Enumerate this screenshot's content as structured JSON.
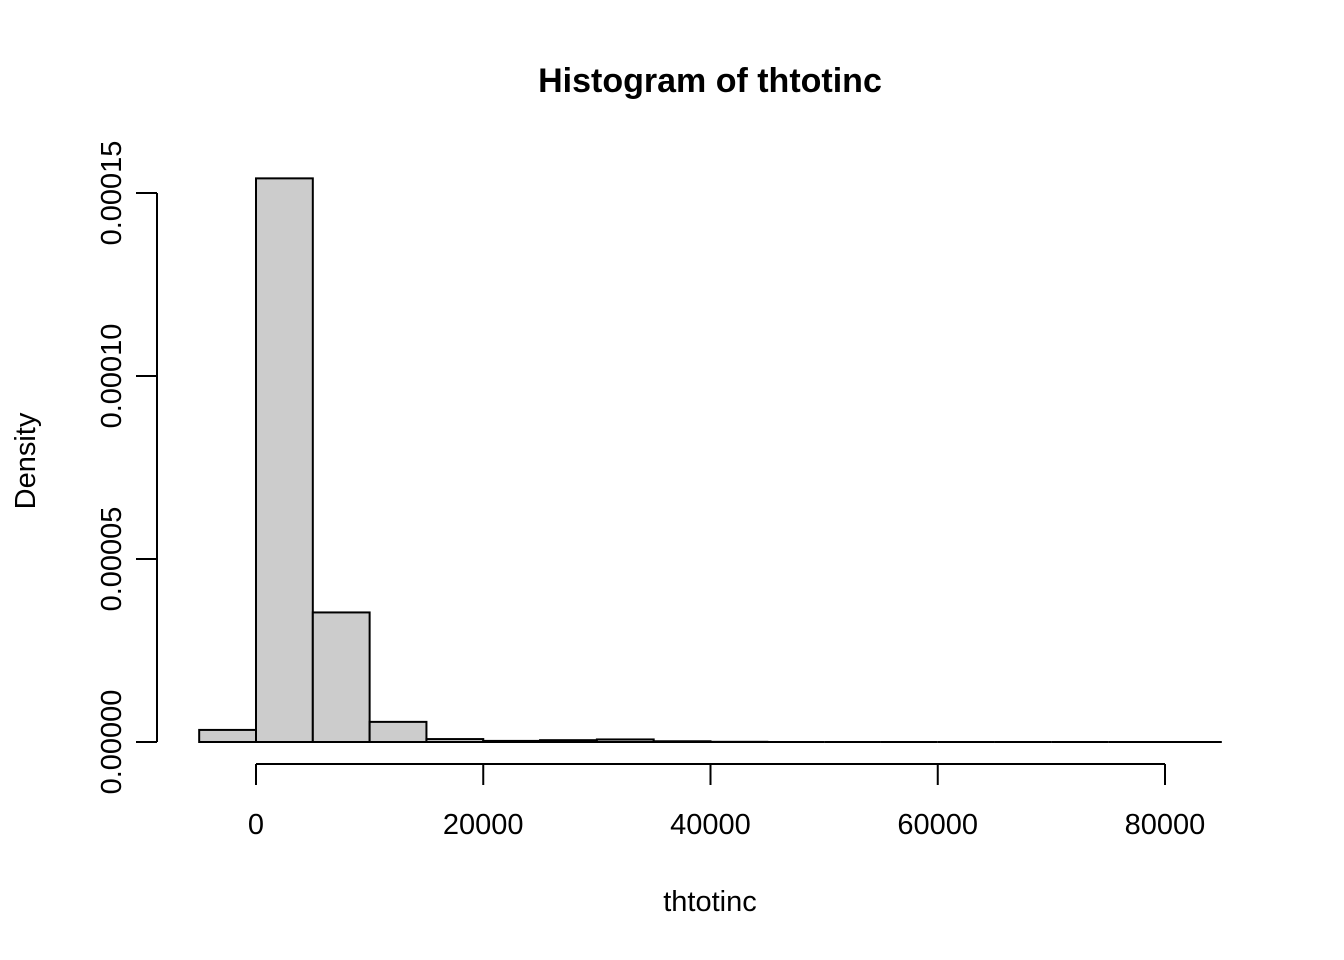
{
  "chart_data": {
    "type": "bar",
    "title": "Histogram of thtotinc",
    "xlabel": "thtotinc",
    "ylabel": "Density",
    "bin_width": 5000,
    "bins": [
      {
        "start": -5000,
        "end": 0,
        "density": 3.3e-06
      },
      {
        "start": 0,
        "end": 5000,
        "density": 0.000154
      },
      {
        "start": 5000,
        "end": 10000,
        "density": 3.54e-05
      },
      {
        "start": 10000,
        "end": 15000,
        "density": 5.5e-06
      },
      {
        "start": 15000,
        "end": 20000,
        "density": 8e-07
      },
      {
        "start": 20000,
        "end": 25000,
        "density": 3e-07
      },
      {
        "start": 25000,
        "end": 30000,
        "density": 5e-07
      },
      {
        "start": 30000,
        "end": 35000,
        "density": 7e-07
      },
      {
        "start": 35000,
        "end": 40000,
        "density": 2e-07
      },
      {
        "start": 40000,
        "end": 45000,
        "density": 5e-08
      },
      {
        "start": 45000,
        "end": 50000,
        "density": 0
      },
      {
        "start": 50000,
        "end": 55000,
        "density": 0
      },
      {
        "start": 55000,
        "end": 60000,
        "density": 0
      },
      {
        "start": 60000,
        "end": 65000,
        "density": 0
      },
      {
        "start": 65000,
        "end": 70000,
        "density": 0
      },
      {
        "start": 70000,
        "end": 75000,
        "density": 0
      },
      {
        "start": 75000,
        "end": 80000,
        "density": 0
      },
      {
        "start": 80000,
        "end": 85000,
        "density": 0
      }
    ],
    "xticks": [
      0,
      20000,
      40000,
      60000,
      80000
    ],
    "xtick_labels": [
      "0",
      "20000",
      "40000",
      "60000",
      "80000"
    ],
    "yticks": [
      0,
      5e-05,
      0.0001,
      0.00015
    ],
    "ytick_labels": [
      "0.00000",
      "0.00005",
      "0.00010",
      "0.00015"
    ],
    "xlim": [
      -5000,
      85000
    ],
    "ylim": [
      0,
      0.00015
    ],
    "bar_color": "#cccccc",
    "edge_color": "#000000",
    "grid": false,
    "legend": "none"
  }
}
